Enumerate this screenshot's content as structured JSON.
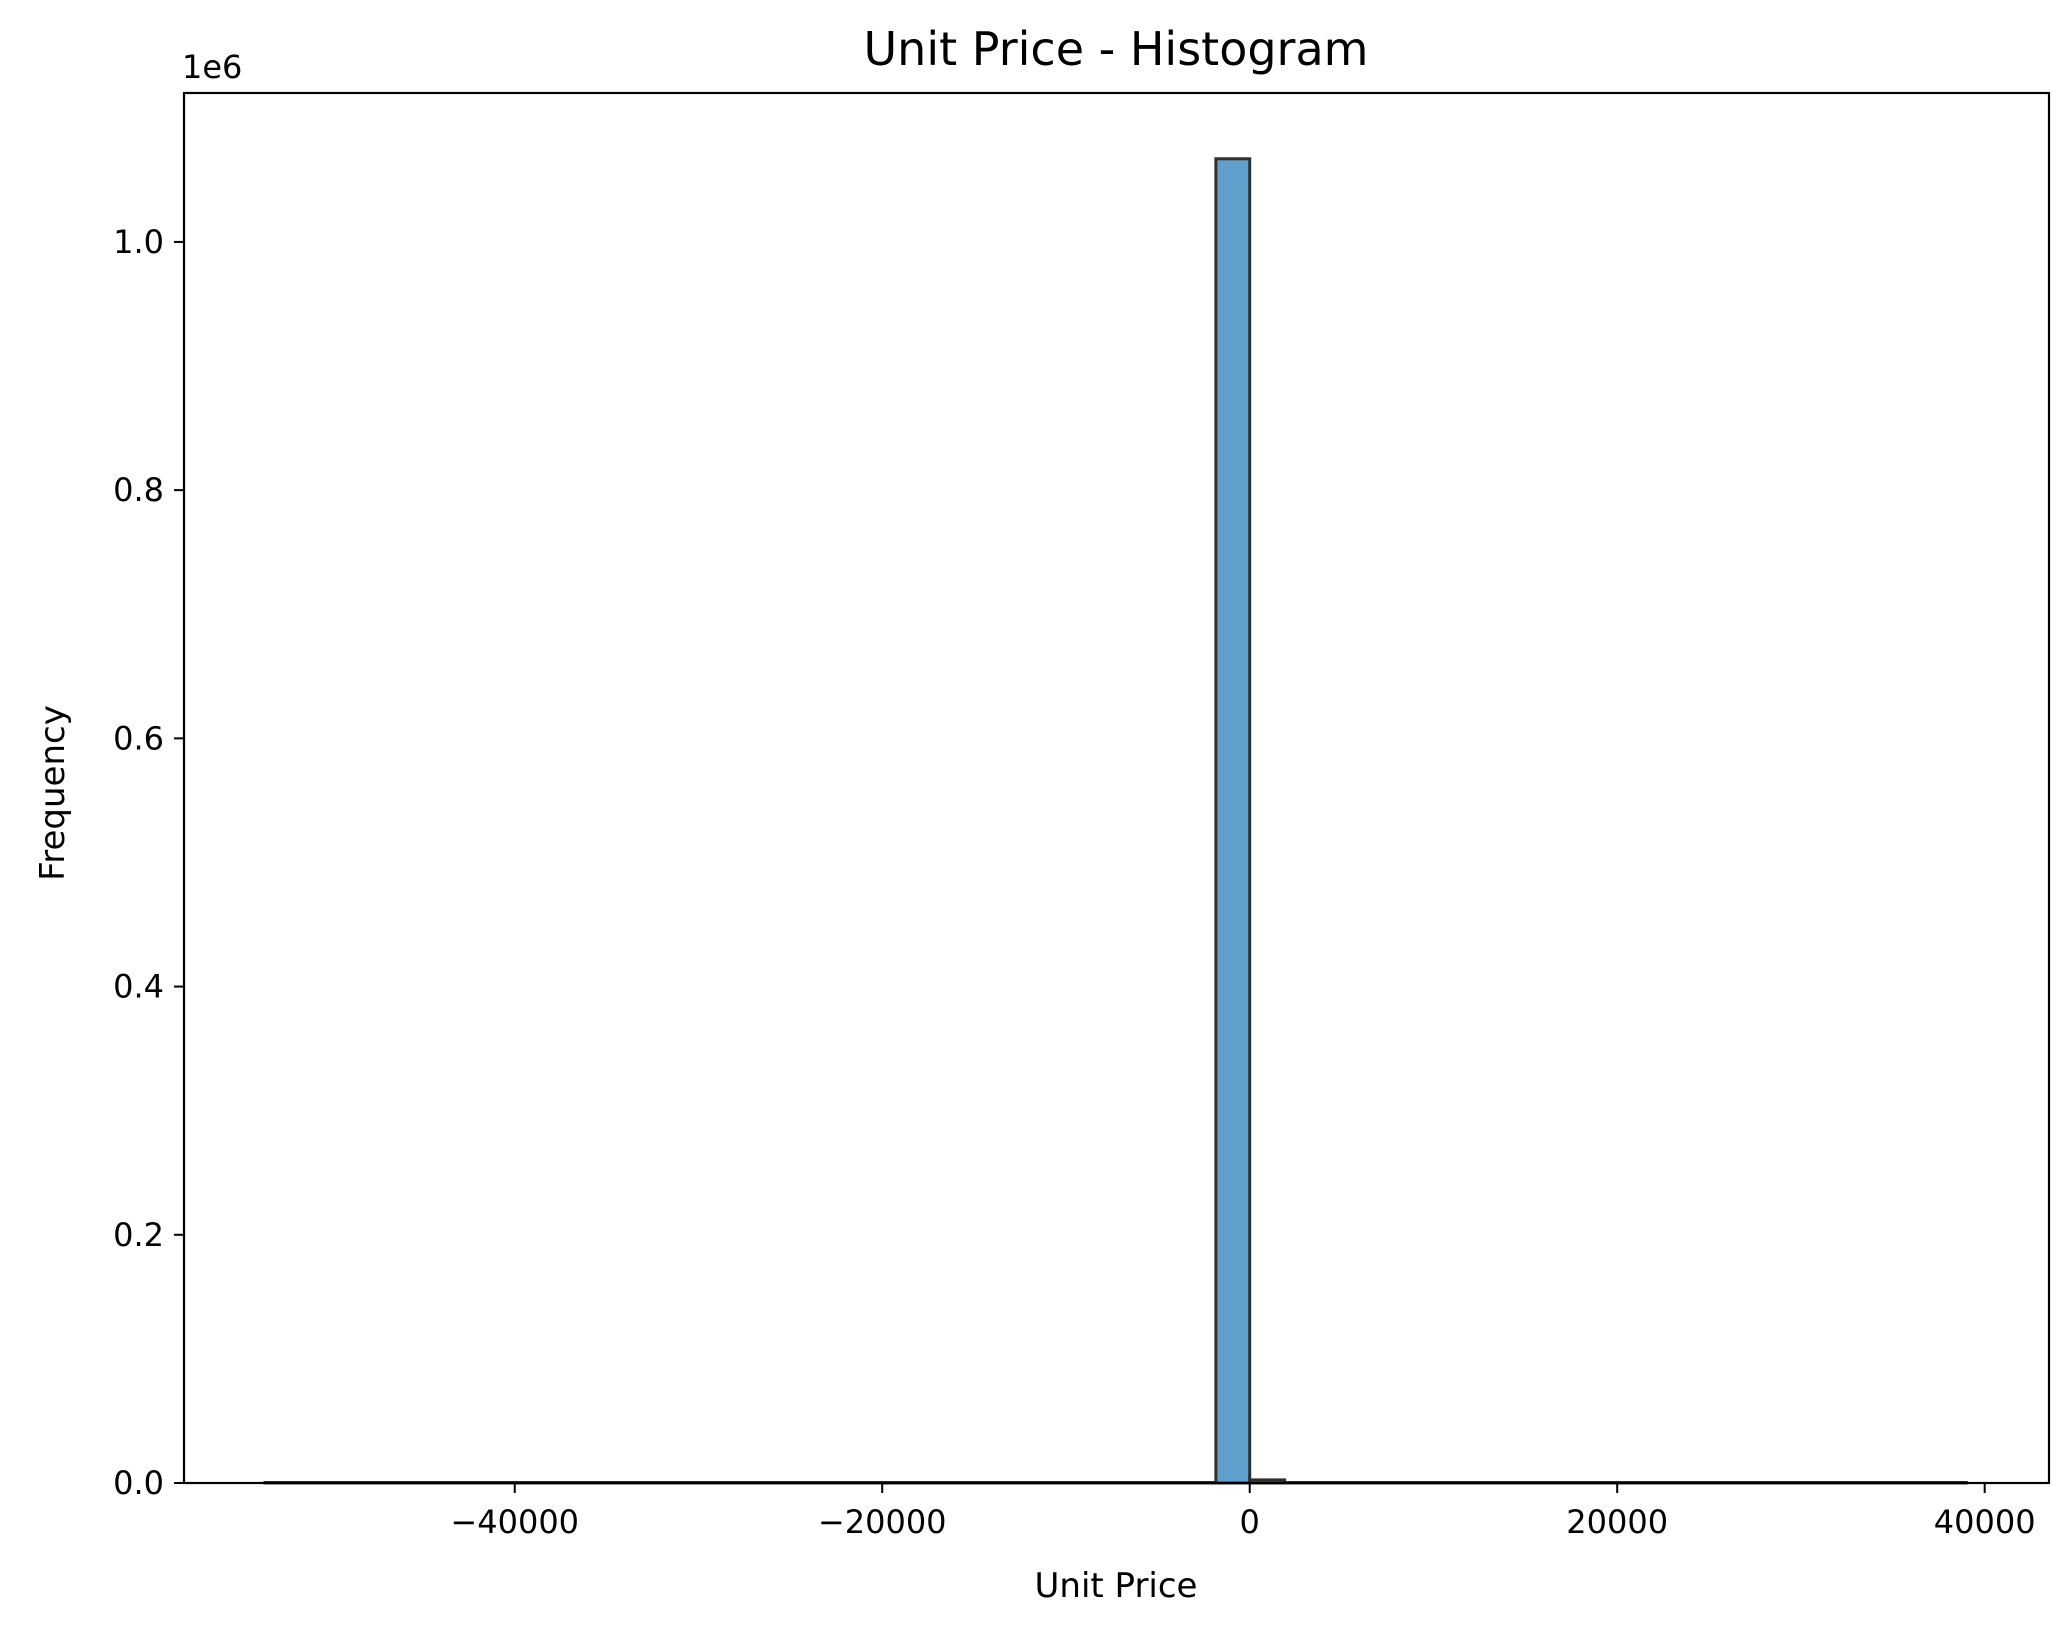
{
  "chart_data": {
    "type": "bar",
    "title": "Unit Price - Histogram",
    "xlabel": "Unit Price",
    "ylabel": "Frequency",
    "y_offset_label": "1e6",
    "xlim": [
      -58000,
      43500
    ],
    "ylim": [
      0,
      1120000
    ],
    "x_ticks": [
      {
        "value": -40000,
        "label": "−40000"
      },
      {
        "value": -20000,
        "label": "−20000"
      },
      {
        "value": 0,
        "label": "0"
      },
      {
        "value": 20000,
        "label": "20000"
      },
      {
        "value": 40000,
        "label": "40000"
      }
    ],
    "y_ticks": [
      {
        "value": 0,
        "label": "0.0"
      },
      {
        "value": 200000,
        "label": "0.2"
      },
      {
        "value": 400000,
        "label": "0.4"
      },
      {
        "value": 600000,
        "label": "0.6"
      },
      {
        "value": 800000,
        "label": "0.8"
      },
      {
        "value": 1000000,
        "label": "1.0"
      }
    ],
    "bins": [
      {
        "x0": -53594,
        "x1": -1841,
        "count": 1
      },
      {
        "x0": -1841,
        "x1": 0,
        "count": 1067000
      },
      {
        "x0": 0,
        "x1": 1900,
        "count": 2500
      },
      {
        "x0": 1900,
        "x1": 39000,
        "count": 30
      }
    ],
    "bar_color": "#5f9fcc",
    "edge_color": "#2f2f2f",
    "grid": false,
    "legend": "none"
  }
}
